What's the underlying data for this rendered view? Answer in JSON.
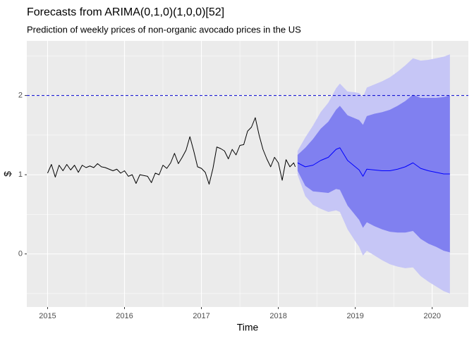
{
  "chart_data": {
    "type": "line",
    "title": "Forecasts from ARIMA(0,1,0)(1,0,0)[52]",
    "subtitle": "Prediction of weekly prices of non-organic avocado prices in the US",
    "x_label": "Time",
    "y_label": "$",
    "xlim": [
      2014.73,
      2020.47
    ],
    "ylim": [
      -0.67,
      2.69
    ],
    "xticks": [
      2015,
      2016,
      2017,
      2018,
      2019,
      2020
    ],
    "yticks": [
      0,
      1,
      2
    ],
    "grid": true,
    "hline": {
      "value": 2,
      "color": "#0000cd"
    },
    "bands": [
      {
        "color": "#c6c6f6",
        "x": [
          2018.25,
          2018.35,
          2018.45,
          2018.55,
          2018.65,
          2018.75,
          2018.8,
          2018.9,
          2019.0,
          2019.05,
          2019.1,
          2019.15,
          2019.25,
          2019.35,
          2019.45,
          2019.55,
          2019.65,
          2019.75,
          2019.85,
          2019.95,
          2020.05,
          2020.15,
          2020.23
        ],
        "lower": [
          1.0,
          0.73,
          0.62,
          0.57,
          0.53,
          0.55,
          0.53,
          0.31,
          0.16,
          0.09,
          -0.02,
          0.04,
          -0.02,
          -0.08,
          -0.13,
          -0.16,
          -0.18,
          -0.17,
          -0.28,
          -0.35,
          -0.41,
          -0.47,
          -0.5
        ],
        "upper": [
          1.3,
          1.47,
          1.62,
          1.79,
          1.91,
          2.09,
          2.15,
          2.05,
          2.04,
          2.03,
          1.98,
          2.1,
          2.14,
          2.18,
          2.23,
          2.3,
          2.38,
          2.47,
          2.44,
          2.45,
          2.47,
          2.49,
          2.52
        ]
      },
      {
        "color": "#8080f0",
        "x": [
          2018.25,
          2018.35,
          2018.45,
          2018.55,
          2018.65,
          2018.75,
          2018.8,
          2018.9,
          2019.0,
          2019.05,
          2019.1,
          2019.15,
          2019.25,
          2019.35,
          2019.45,
          2019.55,
          2019.65,
          2019.75,
          2019.85,
          2019.95,
          2020.05,
          2020.15,
          2020.23
        ],
        "lower": [
          1.05,
          0.86,
          0.79,
          0.78,
          0.77,
          0.82,
          0.81,
          0.61,
          0.49,
          0.43,
          0.33,
          0.4,
          0.35,
          0.31,
          0.28,
          0.27,
          0.27,
          0.29,
          0.19,
          0.13,
          0.09,
          0.04,
          0.02
        ],
        "upper": [
          1.25,
          1.34,
          1.45,
          1.58,
          1.67,
          1.82,
          1.87,
          1.75,
          1.71,
          1.69,
          1.63,
          1.74,
          1.77,
          1.79,
          1.82,
          1.87,
          1.93,
          2.01,
          1.97,
          1.97,
          1.97,
          1.98,
          2.0
        ]
      }
    ],
    "series": [
      {
        "color": "#000000",
        "x": [
          2015.0,
          2015.05,
          2015.1,
          2015.15,
          2015.2,
          2015.25,
          2015.3,
          2015.35,
          2015.4,
          2015.45,
          2015.5,
          2015.55,
          2015.6,
          2015.65,
          2015.7,
          2015.75,
          2015.8,
          2015.85,
          2015.9,
          2015.95,
          2016.0,
          2016.05,
          2016.1,
          2016.15,
          2016.2,
          2016.25,
          2016.3,
          2016.35,
          2016.4,
          2016.45,
          2016.5,
          2016.55,
          2016.6,
          2016.65,
          2016.7,
          2016.75,
          2016.8,
          2016.85,
          2016.9,
          2016.95,
          2017.0,
          2017.05,
          2017.1,
          2017.15,
          2017.2,
          2017.25,
          2017.3,
          2017.35,
          2017.4,
          2017.45,
          2017.5,
          2017.55,
          2017.6,
          2017.65,
          2017.7,
          2017.75,
          2017.8,
          2017.85,
          2017.9,
          2017.95,
          2018.0,
          2018.05,
          2018.1,
          2018.15,
          2018.2,
          2018.22
        ],
        "values": [
          1.02,
          1.13,
          0.97,
          1.12,
          1.05,
          1.13,
          1.06,
          1.12,
          1.03,
          1.12,
          1.09,
          1.11,
          1.09,
          1.14,
          1.1,
          1.09,
          1.07,
          1.05,
          1.07,
          1.02,
          1.05,
          0.98,
          1.0,
          0.89,
          1.0,
          0.99,
          0.98,
          0.9,
          1.02,
          1.0,
          1.12,
          1.08,
          1.15,
          1.27,
          1.14,
          1.22,
          1.31,
          1.48,
          1.3,
          1.1,
          1.08,
          1.03,
          0.88,
          1.08,
          1.35,
          1.33,
          1.3,
          1.2,
          1.32,
          1.25,
          1.37,
          1.38,
          1.55,
          1.6,
          1.72,
          1.5,
          1.32,
          1.2,
          1.1,
          1.22,
          1.15,
          0.93,
          1.19,
          1.1,
          1.15,
          1.1
        ]
      },
      {
        "color": "#0000ff",
        "x": [
          2018.25,
          2018.35,
          2018.45,
          2018.55,
          2018.65,
          2018.75,
          2018.8,
          2018.9,
          2019.0,
          2019.05,
          2019.1,
          2019.15,
          2019.25,
          2019.35,
          2019.45,
          2019.55,
          2019.65,
          2019.75,
          2019.85,
          2019.95,
          2020.05,
          2020.15,
          2020.23
        ],
        "values": [
          1.15,
          1.1,
          1.12,
          1.18,
          1.22,
          1.32,
          1.34,
          1.18,
          1.1,
          1.06,
          0.98,
          1.07,
          1.06,
          1.05,
          1.05,
          1.07,
          1.1,
          1.15,
          1.08,
          1.05,
          1.03,
          1.01,
          1.01
        ]
      }
    ]
  }
}
